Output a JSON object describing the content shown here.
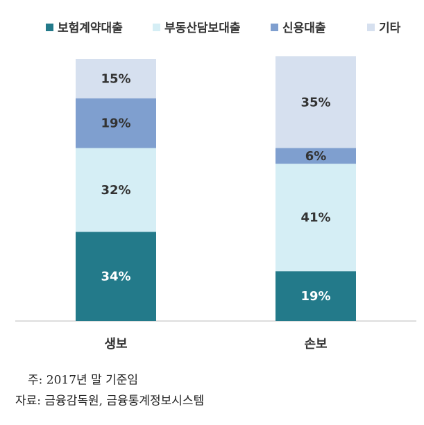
{
  "chart_data": {
    "type": "stacked_bar",
    "categories": [
      "생보",
      "손보"
    ],
    "series": [
      {
        "name": "보험계약대출",
        "color": "#237a8a",
        "label_color": "#ffffff",
        "values": [
          34,
          19
        ],
        "value_labels": [
          "34%",
          "19%"
        ]
      },
      {
        "name": "부동산담보대출",
        "color": "#d5eef5",
        "label_color": "#333333",
        "values": [
          32,
          41
        ],
        "value_labels": [
          "32%",
          "41%"
        ]
      },
      {
        "name": "신용대출",
        "color": "#7f9fcf",
        "label_color": "#333333",
        "values": [
          19,
          6
        ],
        "value_labels": [
          "19%",
          "6%"
        ]
      },
      {
        "name": "기타",
        "color": "#d6e0ef",
        "label_color": "#333333",
        "values": [
          15,
          35
        ],
        "value_labels": [
          "15%",
          "35%"
        ]
      }
    ],
    "ylim": [
      0,
      100
    ],
    "legend": "top",
    "notes": [
      "주: 2017년 말 기준임",
      "자료: 금융감독원, 금융통계정보시스템"
    ]
  }
}
